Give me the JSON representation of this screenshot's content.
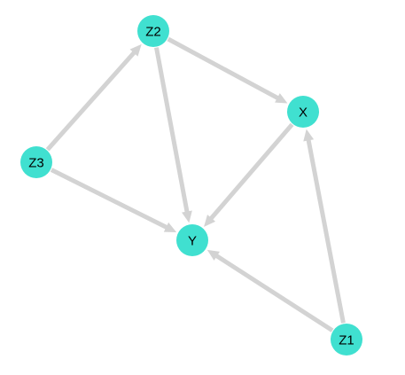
{
  "graph": {
    "node_color": "#40E0D0",
    "edge_color": "#D3D3D3",
    "label_color": "#000000",
    "nodes": [
      {
        "id": "Z2",
        "label": "Z2"
      },
      {
        "id": "X",
        "label": "X"
      },
      {
        "id": "Z3",
        "label": "Z3"
      },
      {
        "id": "Y",
        "label": "Y"
      },
      {
        "id": "Z1",
        "label": "Z1"
      }
    ],
    "edges": [
      {
        "from": "Z3",
        "to": "Z2"
      },
      {
        "from": "Z2",
        "to": "X"
      },
      {
        "from": "Z2",
        "to": "Y"
      },
      {
        "from": "Z3",
        "to": "Y"
      },
      {
        "from": "X",
        "to": "Y"
      },
      {
        "from": "Z1",
        "to": "X"
      },
      {
        "from": "Z1",
        "to": "Y"
      }
    ]
  }
}
